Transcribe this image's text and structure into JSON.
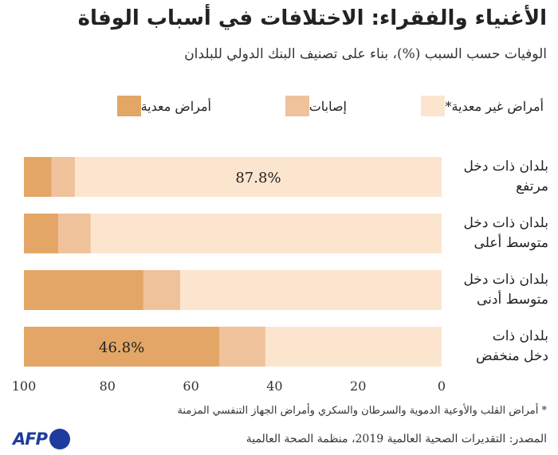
{
  "header": {
    "title": "الأغنياء والفقراء: الاختلافات في أسباب الوفاة",
    "subtitle": "الوفيات حسب السبب (%)، بناء على تصنيف البنك الدولي للبلدان"
  },
  "chart_data": {
    "type": "bar",
    "orientation": "horizontal-stacked",
    "title": "الأغنياء والفقراء: الاختلافات في أسباب الوفاة",
    "xlim": [
      100,
      0
    ],
    "x_ticks": [
      "100",
      "80",
      "60",
      "40",
      "20",
      "0"
    ],
    "categories": [
      "بلدان ذات دخل مرتفع",
      "بلدان ذات دخل متوسط أعلى",
      "بلدان ذات دخل متوسط أدنى",
      "بلدان ذات دخل منخفض"
    ],
    "category_lines": [
      [
        "بلدان ذات دخل",
        "مرتفع"
      ],
      [
        "بلدان ذات دخل",
        "متوسط أعلى"
      ],
      [
        "بلدان ذات دخل",
        "متوسط أدنى"
      ],
      [
        "بلدان ذات",
        "دخل منخفض"
      ]
    ],
    "series": [
      {
        "name": "أمراض غير معدية*",
        "color": "#fce5cf",
        "values": [
          87.8,
          84.0,
          62.6,
          42.2
        ]
      },
      {
        "name": "إصابات",
        "color": "#efc29b",
        "values": [
          5.6,
          7.8,
          8.8,
          11.0
        ]
      },
      {
        "name": "أمراض معدية",
        "color": "#e3a666",
        "values": [
          6.6,
          8.2,
          28.6,
          46.8
        ]
      }
    ],
    "data_labels": [
      {
        "category": 0,
        "series": 0,
        "text": "87.8%"
      },
      {
        "category": 3,
        "series": 2,
        "text": "46.8%"
      }
    ],
    "legend": "top"
  },
  "footer": {
    "note": "* أمراض القلب والأوعية الدموية والسرطان والسكري وأمراض الجهاز التنفسي المزمنة",
    "source": "المصدر: التقديرات الصحية العالمية 2019، منظمة الصحة العالمية",
    "logo": "AFP"
  }
}
